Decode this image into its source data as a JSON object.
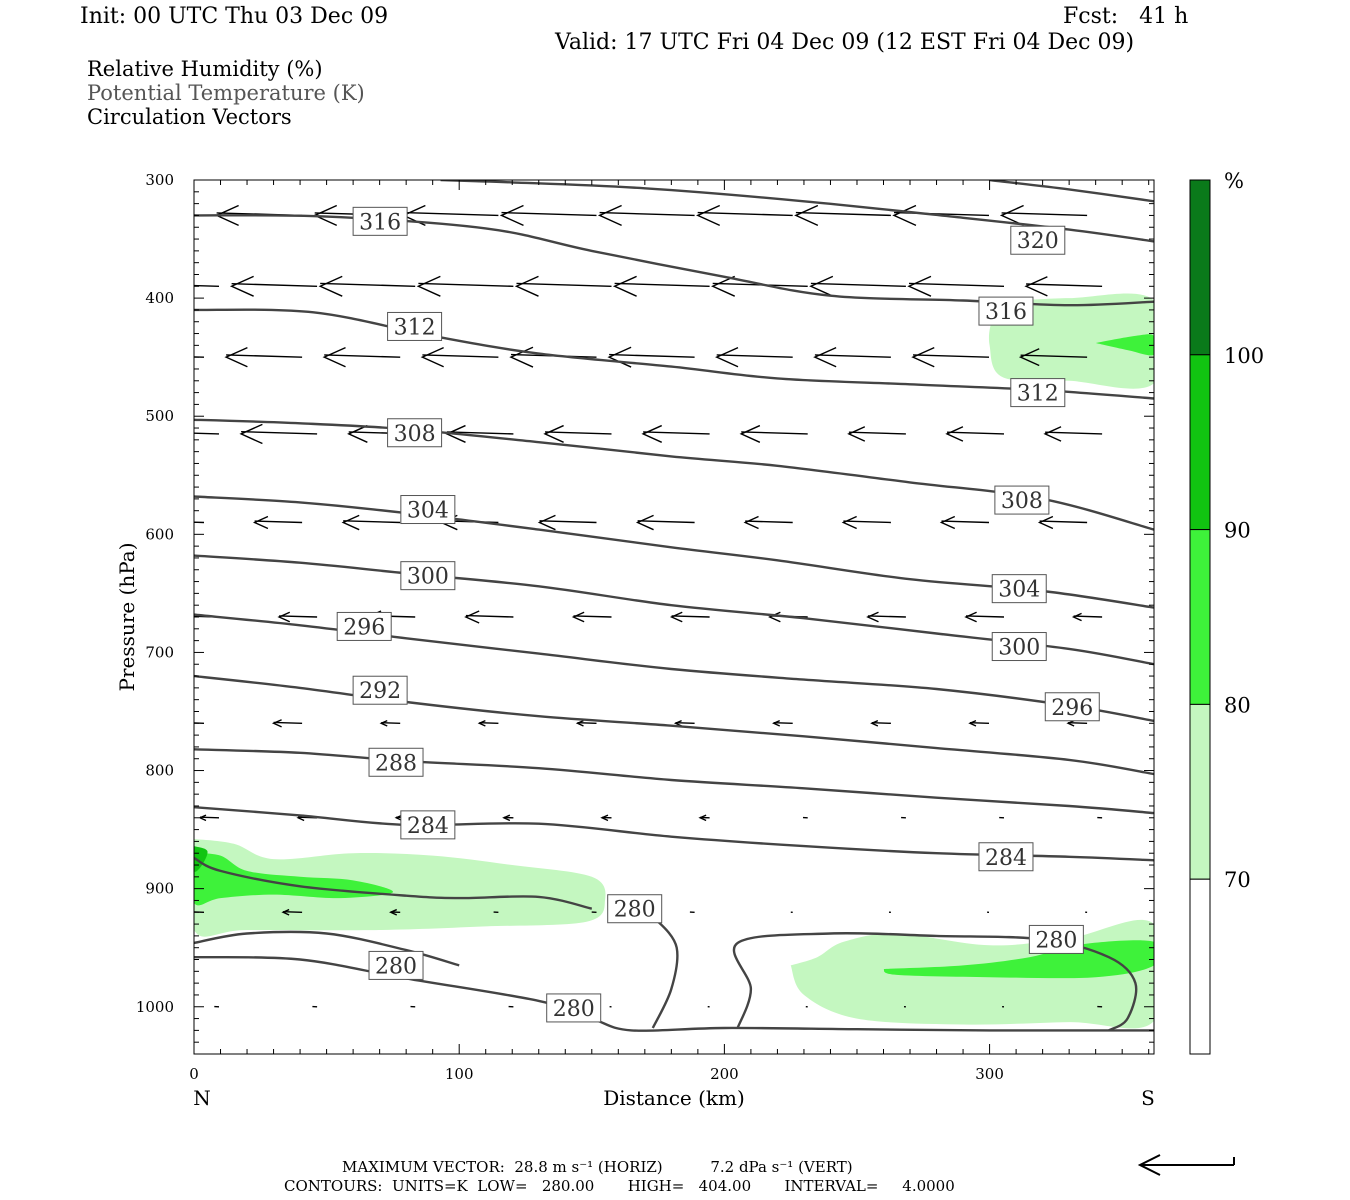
{
  "header": {
    "init": "Init: 00 UTC Thu 03 Dec 09",
    "fcst": "Fcst:   41 h",
    "valid": "Valid: 17 UTC Fri 04 Dec 09 (12 EST Fri 04 Dec 09)"
  },
  "legend": {
    "rh": "Relative Humidity (%)",
    "theta": "Potential Temperature (K)",
    "circ": "Circulation Vectors"
  },
  "footer": {
    "line1": "MAXIMUM VECTOR:  28.8 m s⁻¹ (HORIZ)          7.2 dPa s⁻¹ (VERT)",
    "line2": "CONTOURS:  UNITS=K  LOW=   280.00       HIGH=   404.00       INTERVAL=     4.0000"
  },
  "chart_data": {
    "type": "contour",
    "xlabel": "Distance (km)",
    "ylabel": "Pressure (hPa)",
    "xlim": [
      0,
      362
    ],
    "ylim": [
      1040,
      300
    ],
    "x_ticks": [
      0,
      100,
      200,
      300
    ],
    "y_ticks": [
      300,
      400,
      500,
      600,
      700,
      800,
      900,
      1000
    ],
    "x_end_labels": {
      "left": "N",
      "right": "S"
    },
    "colorbar": {
      "unit": "%",
      "levels": [
        70,
        80,
        90,
        100
      ],
      "colors": [
        "#ffffff",
        "#c4f7c0",
        "#3ef23a",
        "#11c411",
        "#0a7a1a"
      ]
    },
    "theta_contours": [
      {
        "value": 320,
        "points": [
          [
            93,
            300
          ],
          [
            120,
            302
          ],
          [
            170,
            307
          ],
          [
            230,
            318
          ],
          [
            290,
            332
          ],
          [
            330,
            342
          ],
          [
            362,
            352
          ]
        ],
        "label_at": [
          308,
          351
        ]
      },
      {
        "value": 320,
        "points": [
          [
            300,
            300
          ],
          [
            330,
            308
          ],
          [
            362,
            318
          ]
        ]
      },
      {
        "value": 316,
        "points": [
          [
            0,
            330
          ],
          [
            50,
            331
          ],
          [
            110,
            341
          ],
          [
            150,
            360
          ],
          [
            200,
            382
          ],
          [
            240,
            398
          ],
          [
            290,
            402
          ],
          [
            330,
            406
          ],
          [
            362,
            403
          ]
        ],
        "label_at": [
          60,
          335
        ]
      },
      {
        "value": 316,
        "label_at": [
          296,
          411
        ]
      },
      {
        "value": 312,
        "points": [
          [
            0,
            410
          ],
          [
            45,
            412
          ],
          [
            90,
            432
          ],
          [
            130,
            447
          ],
          [
            180,
            458
          ],
          [
            220,
            468
          ],
          [
            270,
            473
          ],
          [
            320,
            478
          ],
          [
            362,
            485
          ]
        ],
        "label_at": [
          73,
          424
        ]
      },
      {
        "value": 312,
        "label_at": [
          308,
          480
        ]
      },
      {
        "value": 308,
        "points": [
          [
            0,
            503
          ],
          [
            40,
            506
          ],
          [
            80,
            511
          ],
          [
            130,
            522
          ],
          [
            180,
            534
          ],
          [
            220,
            542
          ],
          [
            270,
            556
          ],
          [
            320,
            570
          ],
          [
            362,
            596
          ]
        ],
        "label_at": [
          73,
          514
        ]
      },
      {
        "value": 308,
        "label_at": [
          302,
          571
        ]
      },
      {
        "value": 304,
        "points": [
          [
            0,
            568
          ],
          [
            40,
            573
          ],
          [
            80,
            582
          ],
          [
            130,
            596
          ],
          [
            180,
            611
          ],
          [
            220,
            622
          ],
          [
            270,
            638
          ],
          [
            320,
            648
          ],
          [
            362,
            662
          ]
        ],
        "label_at": [
          78,
          579
        ]
      },
      {
        "value": 304,
        "label_at": [
          301,
          646
        ]
      },
      {
        "value": 300,
        "points": [
          [
            0,
            618
          ],
          [
            40,
            624
          ],
          [
            80,
            633
          ],
          [
            130,
            644
          ],
          [
            180,
            660
          ],
          [
            230,
            671
          ],
          [
            280,
            684
          ],
          [
            330,
            697
          ],
          [
            362,
            710
          ]
        ],
        "label_at": [
          78,
          635
        ]
      },
      {
        "value": 300,
        "label_at": [
          301,
          695
        ]
      },
      {
        "value": 296,
        "points": [
          [
            0,
            668
          ],
          [
            40,
            677
          ],
          [
            80,
            688
          ],
          [
            130,
            701
          ],
          [
            180,
            714
          ],
          [
            230,
            723
          ],
          [
            280,
            731
          ],
          [
            330,
            745
          ],
          [
            362,
            758
          ]
        ],
        "label_at": [
          54,
          678
        ]
      },
      {
        "value": 296,
        "label_at": [
          321,
          746
        ]
      },
      {
        "value": 292,
        "points": [
          [
            0,
            720
          ],
          [
            40,
            730
          ],
          [
            80,
            742
          ],
          [
            130,
            754
          ],
          [
            180,
            762
          ],
          [
            230,
            771
          ],
          [
            280,
            781
          ],
          [
            330,
            791
          ],
          [
            362,
            803
          ]
        ],
        "label_at": [
          60,
          732
        ]
      },
      {
        "value": 288,
        "points": [
          [
            0,
            782
          ],
          [
            40,
            785
          ],
          [
            80,
            792
          ],
          [
            130,
            798
          ],
          [
            180,
            808
          ],
          [
            230,
            815
          ],
          [
            280,
            823
          ],
          [
            330,
            830
          ],
          [
            362,
            836
          ]
        ],
        "label_at": [
          66,
          793
        ]
      },
      {
        "value": 284,
        "points": [
          [
            0,
            831
          ],
          [
            40,
            838
          ],
          [
            80,
            846
          ],
          [
            130,
            845
          ],
          [
            180,
            856
          ],
          [
            230,
            864
          ],
          [
            280,
            870
          ],
          [
            330,
            873
          ],
          [
            362,
            876
          ]
        ],
        "label_at": [
          78,
          846
        ]
      },
      {
        "value": 284,
        "label_at": [
          296,
          873
        ]
      },
      {
        "value": 280,
        "points": [
          [
            0,
            874
          ],
          [
            10,
            885
          ],
          [
            40,
            898
          ],
          [
            80,
            906
          ],
          [
            100,
            908
          ],
          [
            130,
            907
          ],
          [
            150,
            917
          ]
        ],
        "label_at": [
          156,
          917
        ]
      },
      {
        "value": 280,
        "points": [
          [
            0,
            946
          ],
          [
            20,
            938
          ],
          [
            50,
            938
          ],
          [
            80,
            952
          ],
          [
            100,
            965
          ]
        ]
      },
      {
        "value": 280,
        "points": [
          [
            0,
            958
          ],
          [
            40,
            960
          ],
          [
            80,
            976
          ],
          [
            130,
            995
          ],
          [
            150,
            1010
          ],
          [
            165,
            1020
          ],
          [
            200,
            1018
          ],
          [
            250,
            1019
          ],
          [
            300,
            1020
          ],
          [
            362,
            1020
          ]
        ],
        "label_at": [
          66,
          965
        ]
      },
      {
        "value": 280,
        "points": [
          [
            173,
            1018
          ],
          [
            180,
            985
          ],
          [
            182,
            950
          ],
          [
            175,
            928
          ],
          [
            170,
            925
          ]
        ]
      },
      {
        "value": 280,
        "points": [
          [
            205,
            1018
          ],
          [
            210,
            985
          ],
          [
            205,
            946
          ],
          [
            240,
            938
          ],
          [
            280,
            940
          ],
          [
            320,
            943
          ],
          [
            345,
            958
          ],
          [
            355,
            980
          ],
          [
            352,
            1010
          ],
          [
            345,
            1020
          ]
        ],
        "label_at": [
          315,
          943
        ]
      },
      {
        "value": 280,
        "label_at": [
          133,
          1001
        ]
      }
    ],
    "rh_shading": [
      {
        "level": "70-80",
        "region": "north-low-level",
        "p_range": [
          860,
          935
        ],
        "x_range": [
          0,
          155
        ]
      },
      {
        "level": "80-90",
        "region": "north-low-level",
        "p_range": [
          870,
          910
        ],
        "x_range": [
          0,
          75
        ]
      },
      {
        "level": "90-100",
        "region": "north-low-level",
        "p_range": [
          866,
          880
        ],
        "x_range": [
          0,
          5
        ]
      },
      {
        "level": "70-80",
        "region": "south-upper",
        "p_range": [
          400,
          470
        ],
        "x_range": [
          300,
          362
        ]
      },
      {
        "level": "80-90",
        "region": "south-upper",
        "p_range": [
          428,
          448
        ],
        "x_range": [
          340,
          362
        ]
      },
      {
        "level": "70-80",
        "region": "south-low-level",
        "p_range": [
          930,
          1015
        ],
        "x_range": [
          225,
          362
        ]
      },
      {
        "level": "80-90",
        "region": "south-low-level",
        "p_range": [
          948,
          990
        ],
        "x_range": [
          260,
          362
        ]
      }
    ],
    "circulation_vectors": {
      "max_horizontal": "28.8 m s-1",
      "max_vertical": "7.2 dPa s-1",
      "rows": [
        {
          "p": 330,
          "x": [
            0,
            37,
            74,
            111,
            148,
            185,
            222,
            259,
            296,
            333
          ],
          "u": [
            -0.9,
            -0.9,
            -0.9,
            -1.0,
            -1.0,
            -1.0,
            -1.0,
            -1.0,
            -1.0,
            -0.9
          ]
        },
        {
          "p": 390,
          "x": [
            0,
            37,
            74,
            111,
            148,
            185,
            222,
            259,
            296,
            333
          ],
          "u": [
            -0.9,
            -0.9,
            -1.0,
            -1.0,
            -1.0,
            -1.0,
            -1.0,
            -1.0,
            -1.0,
            -0.8
          ]
        },
        {
          "p": 450,
          "x": [
            0,
            37,
            74,
            111,
            148,
            185,
            222,
            259,
            296,
            333
          ],
          "u": [
            -0.8,
            -0.8,
            -0.8,
            -0.8,
            -0.9,
            -0.9,
            -0.8,
            -0.8,
            -0.8,
            -0.7
          ]
        },
        {
          "p": 515,
          "x": [
            0,
            37,
            74,
            111,
            148,
            185,
            222,
            259,
            296,
            333
          ],
          "u": [
            -0.8,
            -0.8,
            -0.7,
            -0.7,
            -0.7,
            -0.7,
            -0.7,
            -0.6,
            -0.6,
            -0.6
          ]
        },
        {
          "p": 590,
          "x": [
            0,
            37,
            74,
            111,
            148,
            185,
            222,
            259,
            296,
            333
          ],
          "u": [
            -0.6,
            -0.5,
            -0.6,
            -0.6,
            -0.6,
            -0.6,
            -0.5,
            -0.5,
            -0.5,
            -0.5
          ]
        },
        {
          "p": 670,
          "x": [
            0,
            37,
            74,
            111,
            148,
            185,
            222,
            259,
            296,
            333
          ],
          "u": [
            -0.4,
            -0.4,
            -0.5,
            -0.5,
            -0.4,
            -0.4,
            -0.4,
            -0.4,
            -0.4,
            -0.3
          ]
        },
        {
          "p": 760,
          "x": [
            0,
            37,
            74,
            111,
            148,
            185,
            222,
            259,
            296,
            333
          ],
          "u": [
            -0.3,
            -0.3,
            -0.2,
            -0.2,
            -0.2,
            -0.2,
            -0.2,
            -0.2,
            -0.2,
            -0.2
          ]
        },
        {
          "p": 840,
          "x": [
            0,
            37,
            74,
            111,
            148,
            185,
            222,
            259,
            296,
            333
          ],
          "u": [
            -0.2,
            -0.2,
            -0.2,
            -0.1,
            -0.1,
            -0.1,
            -0.05,
            -0.05,
            -0.05,
            -0.05
          ]
        },
        {
          "p": 920,
          "x": [
            0,
            37,
            74,
            111,
            148,
            185,
            222,
            259,
            296,
            333
          ],
          "u": [
            -0.2,
            -0.2,
            -0.1,
            -0.05,
            -0.05,
            -0.05,
            -0.02,
            -0.02,
            -0.02,
            -0.02
          ]
        },
        {
          "p": 1000,
          "x": [
            0,
            37,
            74,
            111,
            148,
            185,
            222,
            259,
            296,
            333
          ],
          "u": [
            -0.05,
            -0.05,
            -0.05,
            -0.05,
            -0.02,
            -0.02,
            -0.02,
            -0.02,
            -0.02,
            -0.05
          ]
        }
      ]
    }
  }
}
